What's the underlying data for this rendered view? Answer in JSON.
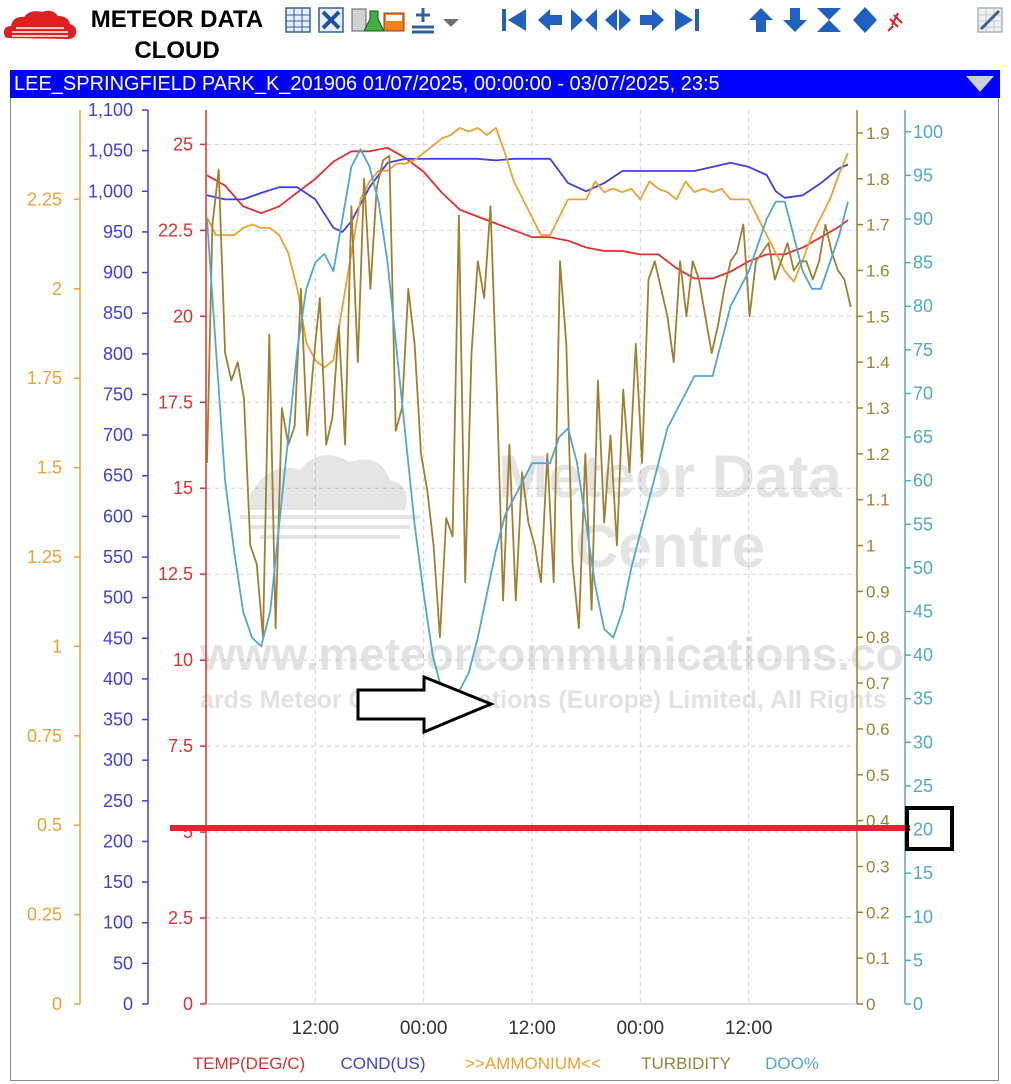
{
  "brand": {
    "name_line1": "METEOR DATA",
    "name_line2": "CLOUD",
    "logo_icon": "red-cloud-icon",
    "logo_color": "#e02020"
  },
  "toolbar": {
    "icons": [
      "chart-table-icon",
      "remove-series-icon",
      "lab-sample-icon",
      "add-sensor-icon",
      "dropdown-caret-icon",
      "first-icon",
      "previous-icon",
      "shrink-icon",
      "expand-icon",
      "next-icon",
      "last-icon",
      "move-up-icon",
      "move-down-icon",
      "zoom-range-icon",
      "diamond-icon",
      "pin-icon",
      "edit-chart-icon"
    ]
  },
  "title_bar": {
    "text": "LEE_SPRINGFIELD PARK_K_201906 01/07/2025, 00:00:00 - 03/07/2025, 23:5",
    "background": "#0000ff"
  },
  "watermark": {
    "line1": "Meteor Data",
    "line2": "Centre",
    "url": "www.meteorcommunications.co",
    "copyright": "ards Meteor Communications (Europe) Limited, All Rights"
  },
  "chart_data": {
    "type": "line",
    "title": "LEE_SPRINGFIELD PARK_K_201906 01/07/2025, 00:00:00 - 03/07/2025, 23:5",
    "x_ticks": [
      "12:00",
      "00:00",
      "12:00",
      "00:00",
      "12:00"
    ],
    "x_range_hours": [
      0,
      72
    ],
    "grid": true,
    "legend_position": "bottom",
    "axes": [
      {
        "id": "ammonium",
        "side": "left",
        "color": "#f0a030",
        "range": [
          0,
          2.5
        ],
        "ticks": [
          "0",
          "0.25",
          "0.5",
          "0.75",
          "1",
          "1.25",
          "1.5",
          "1.75",
          "2",
          "2.25"
        ],
        "values": [
          0,
          0.25,
          0.5,
          0.75,
          1,
          1.25,
          1.5,
          1.75,
          2,
          2.25
        ]
      },
      {
        "id": "cond",
        "side": "left",
        "color": "#4040e0",
        "range": [
          0,
          1100
        ],
        "ticks": [
          "0",
          "50",
          "100",
          "150",
          "200",
          "250",
          "300",
          "350",
          "400",
          "450",
          "500",
          "550",
          "600",
          "650",
          "700",
          "750",
          "800",
          "850",
          "900",
          "950",
          "1,000",
          "1,050",
          "1,100"
        ],
        "values": [
          0,
          50,
          100,
          150,
          200,
          250,
          300,
          350,
          400,
          450,
          500,
          550,
          600,
          650,
          700,
          750,
          800,
          850,
          900,
          950,
          1000,
          1050,
          1100
        ]
      },
      {
        "id": "temp",
        "side": "left",
        "color": "#e03030",
        "range": [
          0,
          26
        ],
        "ticks": [
          "0",
          "2.5",
          "5",
          "7.5",
          "10",
          "12.5",
          "15",
          "17.5",
          "20",
          "22.5",
          "25"
        ],
        "values": [
          0,
          2.5,
          5,
          7.5,
          10,
          12.5,
          15,
          17.5,
          20,
          22.5,
          25
        ]
      },
      {
        "id": "turbidity",
        "side": "right",
        "color": "#a08030",
        "range": [
          0,
          1.95
        ],
        "ticks": [
          "0",
          "0.1",
          "0.2",
          "0.3",
          "0.4",
          "0.5",
          "0.6",
          "0.7",
          "0.8",
          "0.9",
          "1",
          "1.1",
          "1.2",
          "1.3",
          "1.4",
          "1.5",
          "1.6",
          "1.7",
          "1.8",
          "1.9"
        ],
        "values": [
          0,
          0.1,
          0.2,
          0.3,
          0.4,
          0.5,
          0.6,
          0.7,
          0.8,
          0.9,
          1,
          1.1,
          1.2,
          1.3,
          1.4,
          1.5,
          1.6,
          1.7,
          1.8,
          1.9
        ]
      },
      {
        "id": "doo",
        "side": "right",
        "color": "#50a8d0",
        "range": [
          0,
          102.5
        ],
        "ticks": [
          "0",
          "5",
          "10",
          "15",
          "20",
          "25",
          "30",
          "35",
          "40",
          "45",
          "50",
          "55",
          "60",
          "65",
          "70",
          "75",
          "80",
          "85",
          "90",
          "95",
          "100"
        ],
        "values": [
          0,
          5,
          10,
          15,
          20,
          25,
          30,
          35,
          40,
          45,
          50,
          55,
          60,
          65,
          70,
          75,
          80,
          85,
          90,
          95,
          100
        ]
      }
    ],
    "series": [
      {
        "name": "TEMP(DEG/C)",
        "axis": "temp",
        "color": "#e03030",
        "x": [
          0,
          2,
          4,
          6,
          8,
          10,
          12,
          14,
          16,
          18,
          20,
          22,
          24,
          26,
          28,
          30,
          32,
          34,
          36,
          38,
          40,
          42,
          44,
          46,
          48,
          50,
          52,
          54,
          56,
          58,
          60,
          62,
          64,
          66,
          68,
          70,
          71
        ],
        "y": [
          24.1,
          23.8,
          23.2,
          23.0,
          23.2,
          23.6,
          24.0,
          24.5,
          24.8,
          24.8,
          24.9,
          24.6,
          24.2,
          23.6,
          23.1,
          22.9,
          22.7,
          22.5,
          22.3,
          22.3,
          22.2,
          22.0,
          21.9,
          21.9,
          21.8,
          21.8,
          21.4,
          21.1,
          21.1,
          21.3,
          21.6,
          21.8,
          21.8,
          22.0,
          22.3,
          22.6,
          22.8
        ]
      },
      {
        "name": "COND(US)",
        "axis": "cond",
        "color": "#4040e0",
        "x": [
          0,
          2,
          4,
          6,
          8,
          10,
          12,
          14,
          15,
          16,
          18,
          20,
          22,
          24,
          26,
          28,
          30,
          32,
          34,
          36,
          38,
          40,
          42,
          44,
          46,
          48,
          50,
          52,
          54,
          56,
          58,
          60,
          62,
          63,
          64,
          66,
          68,
          70,
          71
        ],
        "y": [
          995,
          990,
          990,
          998,
          1005,
          1005,
          990,
          955,
          950,
          963,
          1005,
          1035,
          1040,
          1040,
          1040,
          1040,
          1040,
          1038,
          1040,
          1040,
          1040,
          1010,
          1000,
          1010,
          1025,
          1025,
          1025,
          1025,
          1025,
          1030,
          1035,
          1030,
          1020,
          1000,
          992,
          995,
          1010,
          1028,
          1033
        ]
      },
      {
        "name": ">>AMMONIUM<<",
        "axis": "ammonium",
        "color": "#f0a030",
        "x": [
          0,
          1,
          2,
          3,
          4,
          5,
          6,
          7,
          8,
          9,
          10,
          11,
          12,
          13,
          14,
          15,
          16,
          17,
          18,
          19,
          20,
          21,
          22,
          23,
          24,
          25,
          26,
          27,
          28,
          29,
          30,
          31,
          32,
          33,
          34,
          35,
          36,
          37,
          38,
          39,
          40,
          41,
          42,
          43,
          44,
          45,
          46,
          47,
          48,
          49,
          50,
          51,
          52,
          53,
          54,
          55,
          56,
          57,
          58,
          59,
          60,
          61,
          62,
          63,
          64,
          65,
          66,
          67,
          68,
          69,
          70,
          71
        ],
        "y": [
          2.2,
          2.15,
          2.15,
          2.15,
          2.17,
          2.18,
          2.17,
          2.17,
          2.15,
          2.1,
          2.0,
          1.85,
          1.8,
          1.78,
          1.8,
          1.95,
          2.1,
          2.25,
          2.3,
          2.33,
          2.33,
          2.35,
          2.35,
          2.36,
          2.38,
          2.4,
          2.42,
          2.43,
          2.45,
          2.44,
          2.45,
          2.43,
          2.45,
          2.38,
          2.3,
          2.25,
          2.2,
          2.15,
          2.15,
          2.2,
          2.25,
          2.25,
          2.25,
          2.3,
          2.27,
          2.28,
          2.27,
          2.28,
          2.25,
          2.3,
          2.28,
          2.27,
          2.25,
          2.3,
          2.27,
          2.28,
          2.27,
          2.28,
          2.25,
          2.25,
          2.25,
          2.2,
          2.15,
          2.1,
          2.05,
          2.02,
          2.08,
          2.15,
          2.2,
          2.25,
          2.32,
          2.38
        ]
      },
      {
        "name": "TURBIDITY",
        "axis": "turbidity",
        "color": "#a08030",
        "x": [
          0,
          0.6,
          1.3,
          2,
          2.7,
          3.4,
          4.1,
          4.8,
          5.5,
          6.2,
          6.9,
          7.6,
          8.3,
          9,
          9.7,
          10.4,
          11.1,
          11.8,
          12.5,
          13.2,
          13.9,
          14.6,
          15.3,
          16,
          16.7,
          17.4,
          18.1,
          18.8,
          19.5,
          20.2,
          20.9,
          21.6,
          22.3,
          23,
          23.7,
          24.4,
          25.1,
          25.8,
          26.5,
          27.2,
          27.9,
          28.6,
          29.3,
          30,
          30.7,
          31.4,
          32.1,
          32.8,
          33.5,
          34.2,
          34.9,
          35.6,
          36.3,
          37,
          37.7,
          38.4,
          39.1,
          39.8,
          40.5,
          41.2,
          41.9,
          42.6,
          43.3,
          44,
          44.7,
          45.4,
          46.1,
          46.8,
          47.5,
          48.2,
          48.9,
          49.6,
          50.3,
          51,
          51.7,
          52.4,
          53.1,
          53.8,
          54.5,
          55.2,
          55.9,
          56.6,
          57.3,
          58,
          58.7,
          59.4,
          60.1,
          60.8,
          61.5,
          62.2,
          62.9,
          63.6,
          64.3,
          65,
          65.7,
          66.4,
          67.1,
          67.8,
          68.5,
          69.2,
          69.9,
          70.6,
          71.3
        ],
        "y": [
          1.18,
          1.7,
          1.82,
          1.42,
          1.36,
          1.4,
          1.32,
          1.0,
          0.96,
          0.8,
          1.46,
          0.82,
          1.3,
          1.22,
          1.26,
          1.56,
          1.24,
          1.4,
          1.54,
          1.22,
          1.28,
          1.48,
          1.22,
          1.74,
          1.4,
          1.8,
          1.56,
          1.78,
          1.84,
          1.85,
          1.25,
          1.3,
          1.56,
          1.44,
          1.2,
          1.12,
          1.0,
          0.8,
          1.06,
          1.02,
          1.72,
          0.92,
          1.42,
          1.62,
          1.54,
          1.74,
          1.34,
          0.88,
          1.22,
          0.88,
          1.16,
          1.05,
          1.0,
          0.92,
          1.2,
          0.92,
          1.62,
          1.44,
          0.96,
          0.82,
          1.2,
          0.86,
          1.36,
          1.05,
          1.24,
          1.0,
          1.34,
          1.16,
          1.44,
          1.18,
          1.58,
          1.62,
          1.56,
          1.5,
          1.4,
          1.62,
          1.5,
          1.62,
          1.58,
          1.5,
          1.42,
          1.48,
          1.56,
          1.62,
          1.64,
          1.7,
          1.5,
          1.62,
          1.64,
          1.66,
          1.58,
          1.62,
          1.66,
          1.6,
          1.62,
          1.62,
          1.58,
          1.62,
          1.7,
          1.64,
          1.6,
          1.58,
          1.52
        ]
      },
      {
        "name": "DOO%",
        "axis": "doo",
        "color": "#50a8d0",
        "x": [
          0,
          1,
          2,
          3,
          4,
          5,
          6,
          7,
          8,
          9,
          10,
          11,
          12,
          13,
          14,
          15,
          16,
          17,
          18,
          19,
          20,
          21,
          22,
          23,
          24,
          25,
          26,
          27,
          28,
          29,
          30,
          31,
          32,
          33,
          34,
          35,
          36,
          37,
          38,
          39,
          40,
          41,
          42,
          43,
          44,
          45,
          46,
          47,
          48,
          49,
          50,
          51,
          52,
          53,
          54,
          55,
          56,
          57,
          58,
          59,
          60,
          61,
          62,
          63,
          64,
          65,
          66,
          67,
          68,
          69,
          70,
          71
        ],
        "y": [
          90,
          75,
          60,
          52,
          45,
          42,
          41,
          45,
          55,
          65,
          75,
          82,
          85,
          86,
          84,
          90,
          96,
          98,
          96,
          92,
          85,
          75,
          65,
          55,
          47,
          40,
          36,
          35,
          36,
          38,
          42,
          47,
          52,
          56,
          58,
          60,
          62,
          62,
          62,
          65,
          66,
          62,
          55,
          48,
          43,
          42,
          45,
          50,
          54,
          58,
          62,
          66,
          68,
          70,
          72,
          72,
          72,
          76,
          80,
          82,
          84,
          87,
          90,
          92,
          92,
          88,
          84,
          82,
          82,
          85,
          88,
          92
        ]
      }
    ]
  },
  "annotations": {
    "arrow": "hollow-right-arrow",
    "highlight_line_color": "#e82030",
    "highlight_box_color": "#000000",
    "highlight_value": "20"
  }
}
